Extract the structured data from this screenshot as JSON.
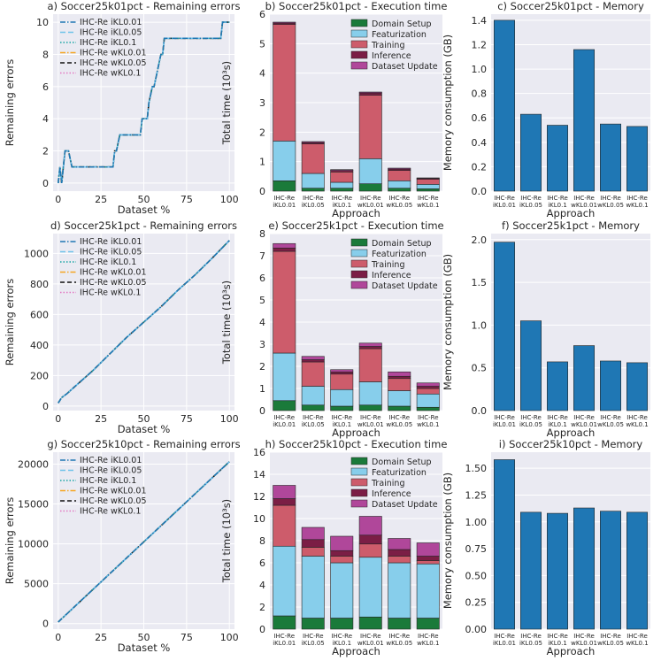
{
  "colors": {
    "line_series": [
      "#1f77b4",
      "#6fc3ea",
      "#17a5a5",
      "#f5a623",
      "#111111",
      "#e377c2"
    ],
    "components": [
      "#1a7a3a",
      "#87ceeb",
      "#cd5c6b",
      "#7b1e45",
      "#b0479a"
    ],
    "memory": "#1f77b4"
  },
  "chart_data": [
    {
      "id": "a",
      "type": "line",
      "title": "a) Soccer25k01pct - Remaining errors",
      "xlabel": "Dataset %",
      "ylabel": "Remaining errors",
      "xlim": [
        -3,
        103
      ],
      "ylim": [
        -0.5,
        10.5
      ],
      "xticks": [
        0,
        25,
        50,
        75,
        100
      ],
      "yticks": [
        0,
        2,
        4,
        6,
        8,
        10
      ],
      "ytick_labels": [
        "0",
        "2",
        "4",
        "6",
        "8",
        "10"
      ],
      "legend": [
        "IHC-Re iKL0.01",
        "IHC-Re iKL0.05",
        "IHC-Re iKL0.1",
        "IHC-Re wKL0.01",
        "IHC-Re wKL0.05",
        "IHC-Re wKL0.1"
      ],
      "x": [
        0,
        1,
        2,
        4,
        5,
        6,
        8,
        10,
        20,
        32,
        33,
        34,
        36,
        42,
        43,
        48,
        49,
        52,
        53,
        55,
        56,
        58,
        60,
        61,
        62,
        70,
        80,
        95,
        96,
        98,
        100
      ],
      "y": [
        0,
        1,
        0,
        2,
        2,
        2,
        1,
        1,
        1,
        1,
        2,
        2,
        3,
        3,
        3,
        3,
        4,
        4,
        5,
        6,
        6,
        7,
        8,
        8,
        9,
        9,
        9,
        9,
        10,
        10,
        10
      ]
    },
    {
      "id": "d",
      "type": "line",
      "title": "d) Soccer25k1pct - Remaining errors",
      "xlabel": "Dataset %",
      "ylabel": "Remaining errors",
      "xlim": [
        -3,
        103
      ],
      "ylim": [
        -30,
        1130
      ],
      "xticks": [
        0,
        25,
        50,
        75,
        100
      ],
      "yticks": [
        0,
        200,
        400,
        600,
        800,
        1000
      ],
      "ytick_labels": [
        "0",
        "200",
        "400",
        "600",
        "800",
        "1000"
      ],
      "legend": [
        "IHC-Re iKL0.01",
        "IHC-Re iKL0.05",
        "IHC-Re iKL0.1",
        "IHC-Re wKL0.01",
        "IHC-Re wKL0.05",
        "IHC-Re wKL0.1"
      ],
      "x": [
        0,
        2,
        5,
        10,
        20,
        30,
        40,
        50,
        60,
        70,
        80,
        90,
        100
      ],
      "y": [
        20,
        55,
        80,
        130,
        230,
        340,
        450,
        550,
        650,
        760,
        860,
        970,
        1085
      ]
    },
    {
      "id": "g",
      "type": "line",
      "title": "g) Soccer25k10pct - Remaining errors",
      "xlabel": "Dataset %",
      "ylabel": "Remaining errors",
      "xlim": [
        -3,
        103
      ],
      "ylim": [
        -700,
        21500
      ],
      "xticks": [
        0,
        25,
        50,
        75,
        100
      ],
      "yticks": [
        0,
        5000,
        10000,
        15000,
        20000
      ],
      "ytick_labels": [
        "0",
        "5000",
        "10000",
        "15000",
        "20000"
      ],
      "legend": [
        "IHC-Re iKL0.01",
        "IHC-Re iKL0.05",
        "IHC-Re iKL0.1",
        "IHC-Re wKL0.01",
        "IHC-Re wKL0.05",
        "IHC-Re wKL0.1"
      ],
      "x": [
        0,
        100
      ],
      "y": [
        200,
        20300
      ]
    },
    {
      "id": "b",
      "type": "bar",
      "stacked": true,
      "title": "b) Soccer25k01pct - Execution time",
      "xlabel": "Approach",
      "ylabel": "Total time (10³s)",
      "ylim": [
        0,
        6
      ],
      "yticks": [
        0,
        1,
        2,
        3,
        4,
        5,
        6
      ],
      "ytick_labels": [
        "0",
        "1",
        "2",
        "3",
        "4",
        "5",
        "6"
      ],
      "categories": [
        [
          "IHC-Re",
          "iKL0.01"
        ],
        [
          "IHC-Re",
          "iKL0.05"
        ],
        [
          "IHC-Re",
          "iKL0.1"
        ],
        [
          "IHC-Re",
          "wKL0.01"
        ],
        [
          "IHC-Re",
          "wKL0.05"
        ],
        [
          "IHC-Re",
          "wKL0.1"
        ]
      ],
      "series": [
        {
          "name": "Domain Setup",
          "values": [
            0.35,
            0.1,
            0.1,
            0.25,
            0.1,
            0.08
          ]
        },
        {
          "name": "Featurization",
          "values": [
            1.35,
            0.5,
            0.2,
            0.85,
            0.25,
            0.15
          ]
        },
        {
          "name": "Training",
          "values": [
            3.95,
            1.0,
            0.35,
            2.15,
            0.35,
            0.17
          ]
        },
        {
          "name": "Inference",
          "values": [
            0.05,
            0.05,
            0.05,
            0.08,
            0.05,
            0.03
          ]
        },
        {
          "name": "Dataset Update",
          "values": [
            0.03,
            0.03,
            0.03,
            0.03,
            0.03,
            0.02
          ]
        }
      ]
    },
    {
      "id": "e",
      "type": "bar",
      "stacked": true,
      "title": "e) Soccer25k1pct - Execution time",
      "xlabel": "Approach",
      "ylabel": "Total time (10³s)",
      "ylim": [
        0,
        8
      ],
      "yticks": [
        0,
        1,
        2,
        3,
        4,
        5,
        6,
        7,
        8
      ],
      "ytick_labels": [
        "0",
        "1",
        "2",
        "3",
        "4",
        "5",
        "6",
        "7",
        "8"
      ],
      "categories": [
        [
          "IHC-Re",
          "iKL0.01"
        ],
        [
          "IHC-Re",
          "iKL0.05"
        ],
        [
          "IHC-Re",
          "iKL0.1"
        ],
        [
          "IHC-Re",
          "wKL0.01"
        ],
        [
          "IHC-Re",
          "wKL0.05"
        ],
        [
          "IHC-Re",
          "wKL0.1"
        ]
      ],
      "series": [
        {
          "name": "Domain Setup",
          "values": [
            0.45,
            0.25,
            0.2,
            0.25,
            0.2,
            0.15
          ]
        },
        {
          "name": "Featurization",
          "values": [
            2.15,
            0.85,
            0.75,
            1.05,
            0.7,
            0.6
          ]
        },
        {
          "name": "Training",
          "values": [
            4.6,
            1.1,
            0.7,
            1.5,
            0.55,
            0.25
          ]
        },
        {
          "name": "Inference",
          "values": [
            0.15,
            0.1,
            0.1,
            0.1,
            0.1,
            0.1
          ]
        },
        {
          "name": "Dataset Update",
          "values": [
            0.2,
            0.15,
            0.1,
            0.15,
            0.2,
            0.15
          ]
        }
      ]
    },
    {
      "id": "h",
      "type": "bar",
      "stacked": true,
      "title": "h) Soccer25k10pct - Execution time",
      "xlabel": "Approach",
      "ylabel": "Total time (10³s)",
      "ylim": [
        0,
        16
      ],
      "yticks": [
        0,
        2,
        4,
        6,
        8,
        10,
        12,
        14,
        16
      ],
      "ytick_labels": [
        "0",
        "2",
        "4",
        "6",
        "8",
        "10",
        "12",
        "14",
        "16"
      ],
      "categories": [
        [
          "IHC-Re",
          "iKL0.01"
        ],
        [
          "IHC-Re",
          "iKL0.05"
        ],
        [
          "IHC-Re",
          "iKL0.1"
        ],
        [
          "IHC-Re",
          "wKL0.01"
        ],
        [
          "IHC-Re",
          "wKL0.05"
        ],
        [
          "IHC-Re",
          "wKL0.1"
        ]
      ],
      "series": [
        {
          "name": "Domain Setup",
          "values": [
            1.2,
            1.0,
            1.0,
            1.1,
            1.0,
            1.0
          ]
        },
        {
          "name": "Featurization",
          "values": [
            6.3,
            5.6,
            5.0,
            5.4,
            5.0,
            4.9
          ]
        },
        {
          "name": "Training",
          "values": [
            3.7,
            0.8,
            0.6,
            1.2,
            0.6,
            0.3
          ]
        },
        {
          "name": "Inference",
          "values": [
            0.6,
            0.7,
            0.5,
            0.8,
            0.6,
            0.4
          ]
        },
        {
          "name": "Dataset Update",
          "values": [
            1.2,
            1.1,
            1.3,
            1.7,
            1.0,
            1.2
          ]
        }
      ]
    },
    {
      "id": "c",
      "type": "bar",
      "title": "c) Soccer25k01pct - Memory",
      "xlabel": "Approach",
      "ylabel": "Memory consumption (GB)",
      "ylim": [
        0,
        1.45
      ],
      "yticks": [
        0,
        0.2,
        0.4,
        0.6,
        0.8,
        1.0,
        1.2,
        1.4
      ],
      "ytick_labels": [
        "0.0",
        "0.2",
        "0.4",
        "0.6",
        "0.8",
        "1.0",
        "1.2",
        "1.4"
      ],
      "categories": [
        [
          "IHC-Re",
          "iKL0.01"
        ],
        [
          "IHC-Re",
          "iKL0.05"
        ],
        [
          "IHC-Re",
          "iKL0.1"
        ],
        [
          "IHC-Re",
          "wKL0.01"
        ],
        [
          "IHC-Re",
          "wKL0.05"
        ],
        [
          "IHC-Re",
          "wKL0.1"
        ]
      ],
      "values": [
        1.4,
        0.63,
        0.54,
        1.16,
        0.55,
        0.53
      ]
    },
    {
      "id": "f",
      "type": "bar",
      "title": "f) Soccer25k1pct - Memory",
      "xlabel": "Approach",
      "ylabel": "Memory consumption (GB)",
      "ylim": [
        0,
        2.07
      ],
      "yticks": [
        0,
        0.5,
        1.0,
        1.5,
        2.0
      ],
      "ytick_labels": [
        "0.0",
        "0.5",
        "1.0",
        "1.5",
        "2.0"
      ],
      "categories": [
        [
          "IHC-Re",
          "iKL0.01"
        ],
        [
          "IHC-Re",
          "iKL0.05"
        ],
        [
          "IHC-Re",
          "iKL0.1"
        ],
        [
          "IHC-Re",
          "wKL0.01"
        ],
        [
          "IHC-Re",
          "wKL0.05"
        ],
        [
          "IHC-Re",
          "wKL0.1"
        ]
      ],
      "values": [
        1.97,
        1.05,
        0.57,
        0.76,
        0.58,
        0.56
      ]
    },
    {
      "id": "i",
      "type": "bar",
      "title": "i) Soccer25k10pct - Memory",
      "xlabel": "Approach",
      "ylabel": "Memory consumption (GB)",
      "ylim": [
        0,
        1.65
      ],
      "yticks": [
        0,
        0.25,
        0.5,
        0.75,
        1.0,
        1.25,
        1.5
      ],
      "ytick_labels": [
        "0.00",
        "0.25",
        "0.50",
        "0.75",
        "1.00",
        "1.25",
        "1.50"
      ],
      "categories": [
        [
          "IHC-Re",
          "iKL0.01"
        ],
        [
          "IHC-Re",
          "iKL0.05"
        ],
        [
          "IHC-Re",
          "iKL0.1"
        ],
        [
          "IHC-Re",
          "wKL0.01"
        ],
        [
          "IHC-Re",
          "wKL0.05"
        ],
        [
          "IHC-Re",
          "wKL0.1"
        ]
      ],
      "values": [
        1.58,
        1.09,
        1.08,
        1.13,
        1.1,
        1.09
      ]
    }
  ]
}
